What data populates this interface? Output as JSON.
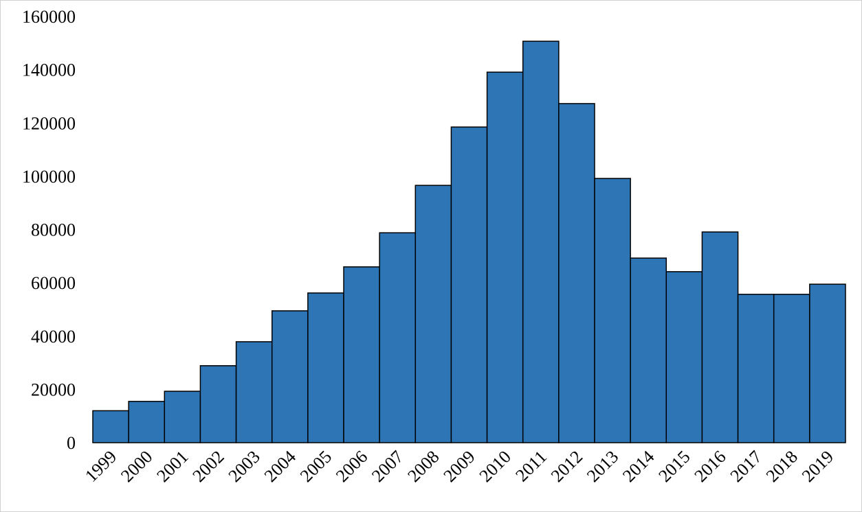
{
  "chart_data": {
    "type": "bar",
    "categories": [
      "1999",
      "2000",
      "2001",
      "2002",
      "2003",
      "2004",
      "2005",
      "2006",
      "2007",
      "2008",
      "2009",
      "2010",
      "2011",
      "2012",
      "2013",
      "2014",
      "2015",
      "2016",
      "2017",
      "2018",
      "2019"
    ],
    "values": [
      12000,
      15500,
      19300,
      28900,
      37900,
      49500,
      56200,
      66000,
      78800,
      96600,
      118500,
      139100,
      150700,
      127300,
      99200,
      69300,
      64200,
      79100,
      55700,
      55700,
      59500
    ],
    "color": "#2e75b6",
    "ylim": [
      0,
      160000
    ],
    "yticks": [
      0,
      20000,
      40000,
      60000,
      80000,
      100000,
      120000,
      140000,
      160000
    ],
    "grid": false
  }
}
